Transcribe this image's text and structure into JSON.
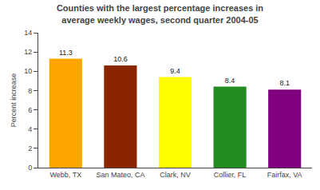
{
  "chart_data": {
    "type": "bar",
    "title": "Counties with the largest percentage increases in\naverage weekly wages, second quarter 2004-05",
    "categories": [
      "Webb, TX",
      "San Mateo, CA",
      "Clark, NV",
      "Collier, FL",
      "Fairfax, VA"
    ],
    "values": [
      11.3,
      10.6,
      9.4,
      8.4,
      8.1
    ],
    "colors": [
      "#FFA500",
      "#8B2500",
      "#FFFF00",
      "#228B22",
      "#800080"
    ],
    "ylabel": "Percent increase",
    "ylim": [
      0,
      14
    ],
    "yticks": [
      0,
      2,
      4,
      6,
      8,
      10,
      12,
      14
    ],
    "data_labels": true,
    "grid": false
  }
}
